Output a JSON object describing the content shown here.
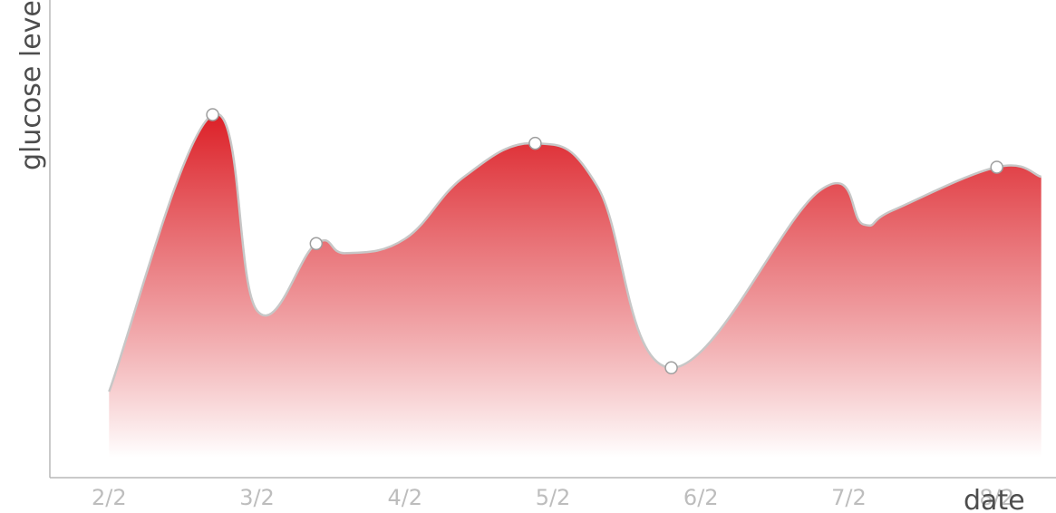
{
  "chart_data": {
    "type": "area",
    "xlabel": "date",
    "ylabel": "glucose level",
    "categories": [
      "2/2",
      "3/2",
      "4/2",
      "5/2",
      "6/2",
      "7/2",
      "8/2"
    ],
    "x": [
      0.0,
      0.7,
      1.0,
      1.4,
      1.6,
      2.0,
      2.4,
      2.88,
      3.3,
      3.8,
      4.8,
      5.1,
      5.3,
      6.0,
      6.3
    ],
    "values": [
      1.8,
      7.6,
      3.5,
      4.9,
      4.7,
      5.0,
      6.3,
      7.0,
      6.1,
      2.3,
      6.0,
      5.3,
      5.6,
      6.5,
      6.3
    ],
    "markers_x": [
      0.7,
      1.4,
      2.88,
      3.8,
      6.0
    ],
    "xlim": [
      -0.4,
      6.4
    ],
    "ylim": [
      0,
      10
    ],
    "ticks": [
      0,
      1,
      2,
      3,
      4,
      5,
      6
    ],
    "grid": false,
    "legend": "none",
    "fill_top_color": "#dc1f26",
    "fill_bottom_color": "#ffffff",
    "line_color": "#c7c7c7"
  }
}
